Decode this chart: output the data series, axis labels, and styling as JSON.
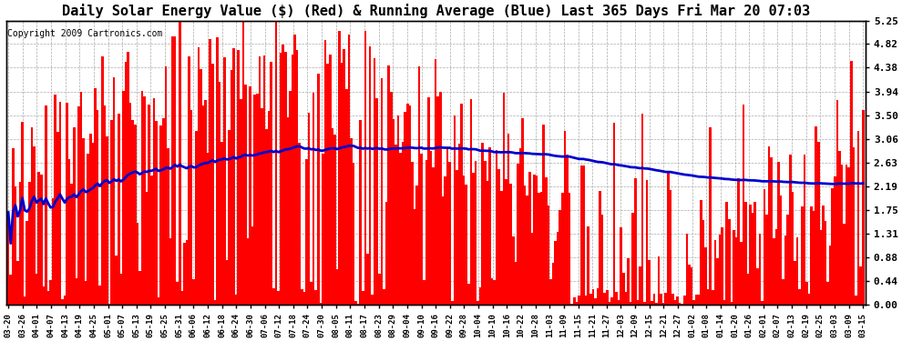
{
  "title": "Daily Solar Energy Value ($) (Red) & Running Average (Blue) Last 365 Days Fri Mar 20 07:03",
  "copyright": "Copyright 2009 Cartronics.com",
  "ylabel_right": [
    "0.00",
    "0.44",
    "0.88",
    "1.31",
    "1.75",
    "2.19",
    "2.63",
    "3.06",
    "3.50",
    "3.94",
    "4.38",
    "4.82",
    "5.25"
  ],
  "ymax": 5.25,
  "ymin": 0.0,
  "bar_color": "#ff0000",
  "avg_color": "#0000cc",
  "background_color": "#ffffff",
  "plot_bg_color": "#ffffff",
  "grid_color": "#aaaaaa",
  "title_fontsize": 11,
  "copyright_fontsize": 7,
  "xtick_labels": [
    "03-20",
    "03-26",
    "04-01",
    "04-07",
    "04-13",
    "04-19",
    "04-25",
    "05-01",
    "05-07",
    "05-13",
    "05-19",
    "05-25",
    "05-31",
    "06-06",
    "06-12",
    "06-18",
    "06-24",
    "06-30",
    "07-06",
    "07-12",
    "07-18",
    "07-24",
    "07-30",
    "08-05",
    "08-11",
    "08-17",
    "08-23",
    "08-29",
    "09-04",
    "09-10",
    "09-16",
    "09-22",
    "09-28",
    "10-04",
    "10-10",
    "10-16",
    "10-22",
    "10-28",
    "11-03",
    "11-09",
    "11-15",
    "11-21",
    "11-27",
    "12-03",
    "12-09",
    "12-15",
    "12-21",
    "12-27",
    "01-02",
    "01-08",
    "01-14",
    "01-20",
    "01-26",
    "02-01",
    "02-07",
    "02-13",
    "02-19",
    "02-25",
    "03-03",
    "03-09",
    "03-15"
  ]
}
